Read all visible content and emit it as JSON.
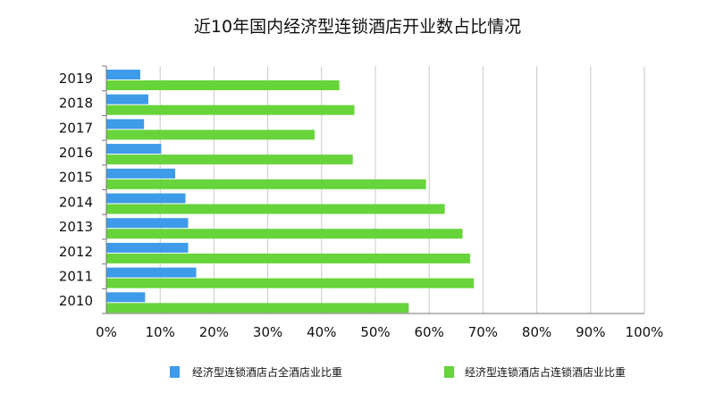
{
  "chart_data": {
    "type": "bar",
    "orientation": "horizontal",
    "title": "近10年国内经济型连锁酒店开业数占比情况",
    "categories": [
      "2019",
      "2018",
      "2017",
      "2016",
      "2015",
      "2014",
      "2013",
      "2012",
      "2011",
      "2010"
    ],
    "series": [
      {
        "name": "经济型连锁酒店占全酒店业比重",
        "color": "#3d9be9",
        "values": [
          6.3,
          7.8,
          7.0,
          10.2,
          12.8,
          14.7,
          15.2,
          15.2,
          16.7,
          7.2
        ]
      },
      {
        "name": "经济型连锁酒店占连锁酒店业比重",
        "color": "#66d43a",
        "values": [
          43.3,
          46.1,
          38.7,
          45.8,
          59.4,
          62.9,
          66.2,
          67.6,
          68.3,
          56.2
        ]
      }
    ],
    "x_ticks": [
      "0%",
      "10%",
      "20%",
      "30%",
      "40%",
      "50%",
      "60%",
      "70%",
      "80%",
      "90%",
      "100%"
    ],
    "xlim": [
      0,
      100
    ],
    "grid": true,
    "legend_position": "bottom"
  }
}
